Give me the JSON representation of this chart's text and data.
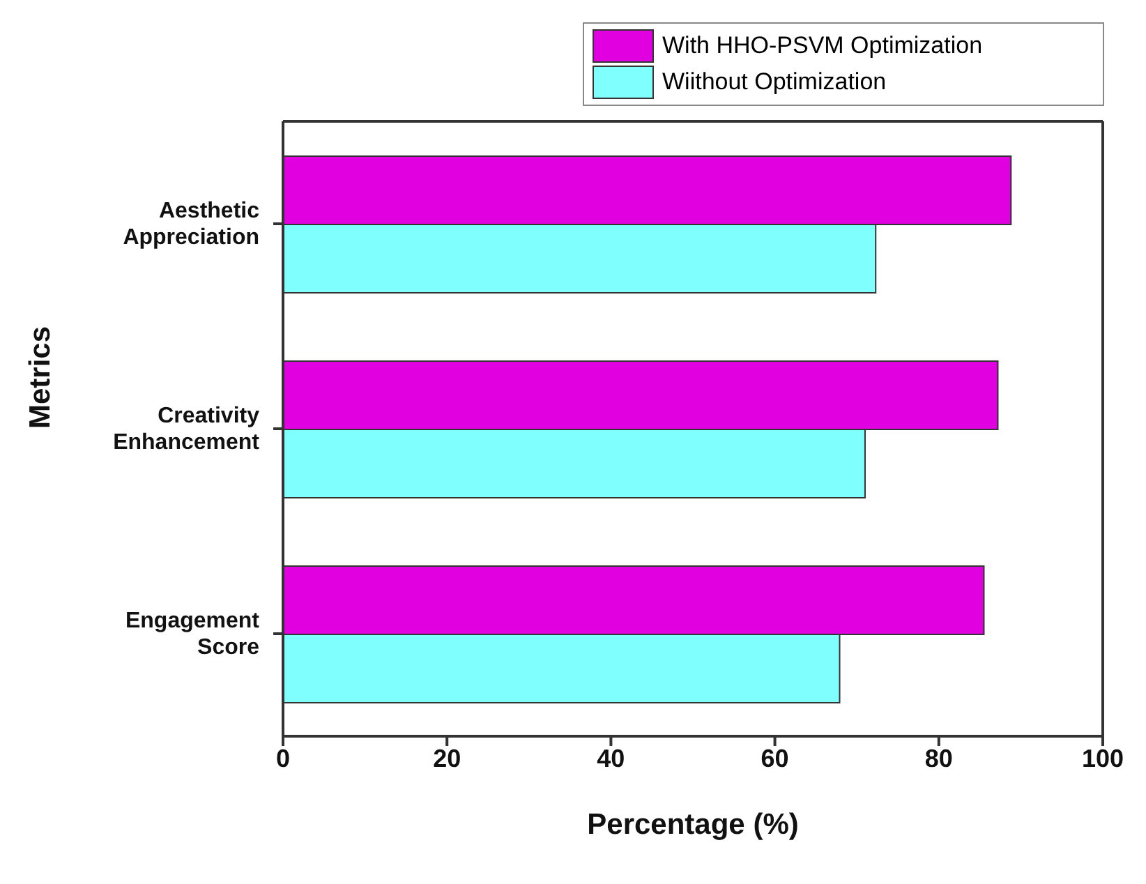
{
  "chart_data": {
    "type": "bar",
    "orientation": "horizontal",
    "xlabel": "Percentage (%)",
    "ylabel": "Metrics",
    "categories": [
      "Aesthetic Appreciation",
      "Creativity Enhancement",
      "Engagement Score"
    ],
    "series": [
      {
        "name": "With HHO-PSVM Optimization",
        "color": "#e000e0",
        "values": [
          88.8,
          87.2,
          85.5
        ]
      },
      {
        "name": "Wiithout Optimization",
        "color": "#80ffff",
        "values": [
          72.3,
          71.0,
          67.9
        ]
      }
    ],
    "xlim": [
      0,
      100
    ],
    "xticks": [
      0,
      20,
      40,
      60,
      80,
      100
    ],
    "grid": false,
    "legend": "top right"
  }
}
